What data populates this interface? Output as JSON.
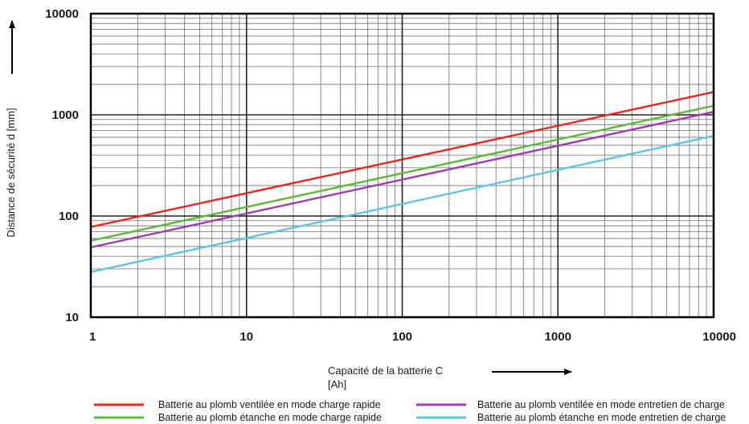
{
  "chart_data": {
    "type": "line",
    "scale": {
      "x": "log",
      "y": "log"
    },
    "xlim": [
      1,
      10000
    ],
    "ylim": [
      10,
      10000
    ],
    "grid": true,
    "legend_position": "bottom",
    "xlabel_line1": "Capacité  de  la  batterie  C",
    "xlabel_line2": "[Ah]",
    "ylabel": "Distance de sécurité d [mm]",
    "x_ticks": [
      {
        "value": 1,
        "label": "1"
      },
      {
        "value": 10,
        "label": "10"
      },
      {
        "value": 100,
        "label": "100"
      },
      {
        "value": 1000,
        "label": "1000"
      },
      {
        "value": 10000,
        "label": "10000"
      }
    ],
    "y_ticks": [
      {
        "value": 10,
        "label": "10"
      },
      {
        "value": 100,
        "label": "100"
      },
      {
        "value": 1000,
        "label": "1000"
      },
      {
        "value": 10000,
        "label": "10000"
      }
    ],
    "series": [
      {
        "name": "Batterie au plomb ventilée en mode charge rapide",
        "color": "#e8271f",
        "x": [
          1,
          10000
        ],
        "y": [
          78,
          1680
        ]
      },
      {
        "name": "Batterie au plomb étanche en mode charge rapide",
        "color": "#5cb83a",
        "x": [
          1,
          10000
        ],
        "y": [
          57,
          1230
        ]
      },
      {
        "name": "Batterie au plomb ventilée en mode entretien de charge",
        "color": "#a23ab0",
        "x": [
          1,
          10000
        ],
        "y": [
          49,
          1070
        ]
      },
      {
        "name": "Batterie au plomb étanche en mode entretien de charge",
        "color": "#5cc6e6",
        "x": [
          1,
          10000
        ],
        "y": [
          28,
          620
        ]
      }
    ]
  }
}
